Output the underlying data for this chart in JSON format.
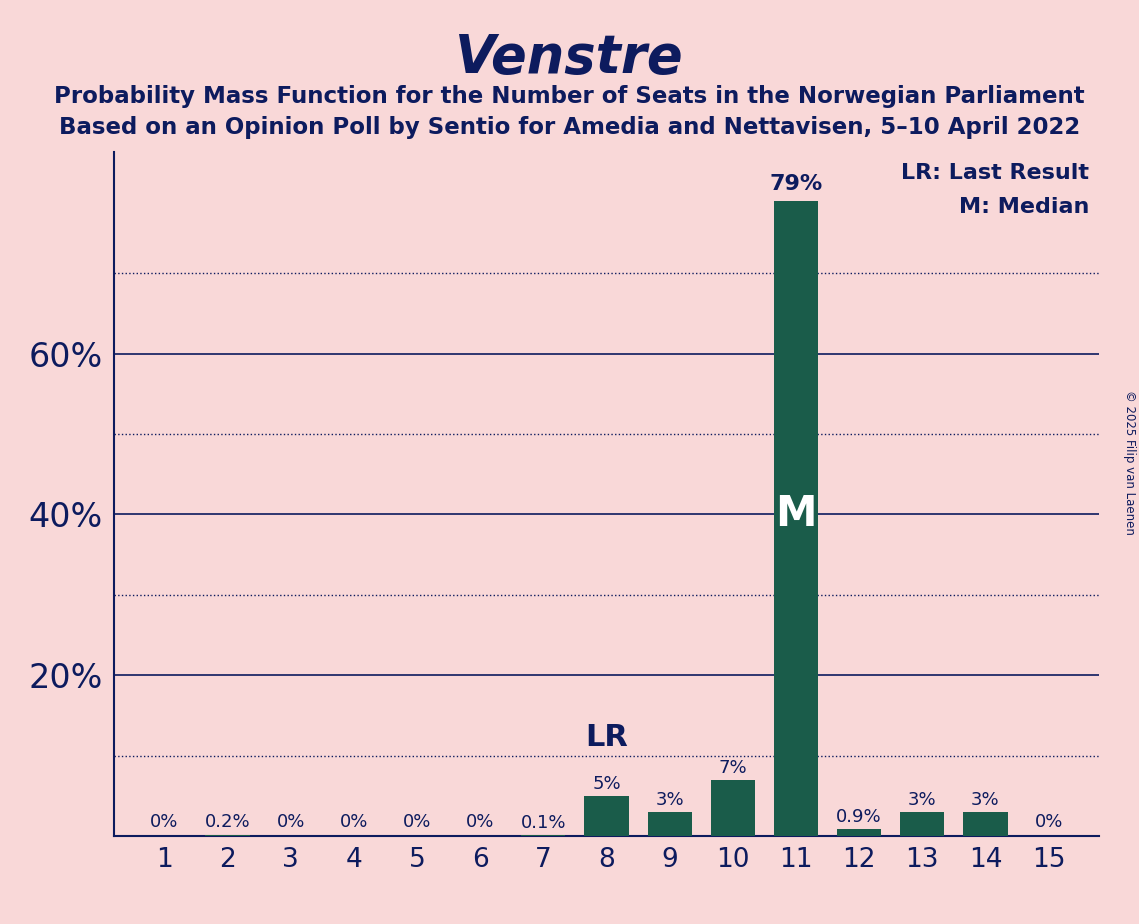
{
  "title": "Venstre",
  "subtitle_line1": "Probability Mass Function for the Number of Seats in the Norwegian Parliament",
  "subtitle_line2": "Based on an Opinion Poll by Sentio for Amedia and Nettavisen, 5–10 April 2022",
  "seats": [
    1,
    2,
    3,
    4,
    5,
    6,
    7,
    8,
    9,
    10,
    11,
    12,
    13,
    14,
    15
  ],
  "probabilities": [
    0.0,
    0.2,
    0.0,
    0.0,
    0.0,
    0.0,
    0.1,
    5.0,
    3.0,
    7.0,
    79.0,
    0.9,
    3.0,
    3.0,
    0.0
  ],
  "bar_color": "#1a5c4a",
  "background_color": "#f9d8d8",
  "text_color": "#0d1b5e",
  "median_seat": 11,
  "lr_seat": 8,
  "legend_lr": "LR: Last Result",
  "legend_m": "M: Median",
  "copyright": "© 2025 Filip van Laenen",
  "ytick_labels": [
    20,
    40,
    60
  ],
  "solid_lines": [
    20,
    40,
    60
  ],
  "dotted_lines": [
    10,
    30,
    50,
    70
  ],
  "ymax": 85,
  "bar_labels": [
    "0%",
    "0.2%",
    "0%",
    "0%",
    "0%",
    "0%",
    "0.1%",
    "5%",
    "3%",
    "7%",
    "79%",
    "0.9%",
    "3%",
    "3%",
    "0%"
  ],
  "median_label": "M",
  "lr_label": "LR"
}
